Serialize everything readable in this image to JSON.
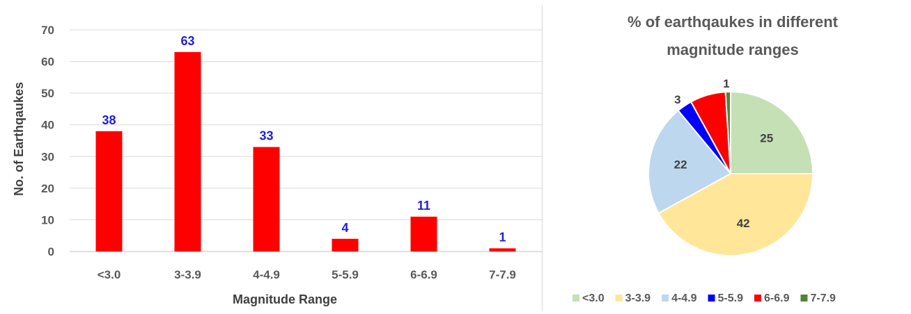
{
  "chart_data": [
    {
      "type": "bar",
      "categories": [
        "<3.0",
        "3-3.9",
        "4-4.9",
        "5-5.9",
        "6-6.9",
        "7-7.9"
      ],
      "values": [
        38,
        63,
        33,
        4,
        11,
        1
      ],
      "data_labels": [
        "38",
        "63",
        "33",
        "4",
        "11",
        "1"
      ],
      "xlabel": "Magnitude Range",
      "ylabel": "No. of Earthqaukes",
      "ylim": [
        0,
        70
      ],
      "yticks": [
        0,
        10,
        20,
        30,
        40,
        50,
        60,
        70
      ],
      "grid": true,
      "colors": {
        "bar": "#ff0000",
        "data_label": "#1f1fd6",
        "grid": "#d9d9d9"
      }
    },
    {
      "type": "pie",
      "title_lines": [
        "% of earthqaukes in different",
        "magnitude ranges"
      ],
      "labels": [
        "<3.0",
        "3-3.9",
        "4-4.9",
        "5-5.9",
        "6-6.9",
        "7-7.9"
      ],
      "values": [
        25,
        42,
        22,
        3,
        7,
        1
      ],
      "data_labels": [
        "25",
        "42",
        "22",
        "3",
        "",
        "1"
      ],
      "colors": [
        "#c5e0b4",
        "#ffe699",
        "#bdd7ee",
        "#0000ff",
        "#ff0000",
        "#548235"
      ],
      "legend_position": "bottom"
    }
  ]
}
